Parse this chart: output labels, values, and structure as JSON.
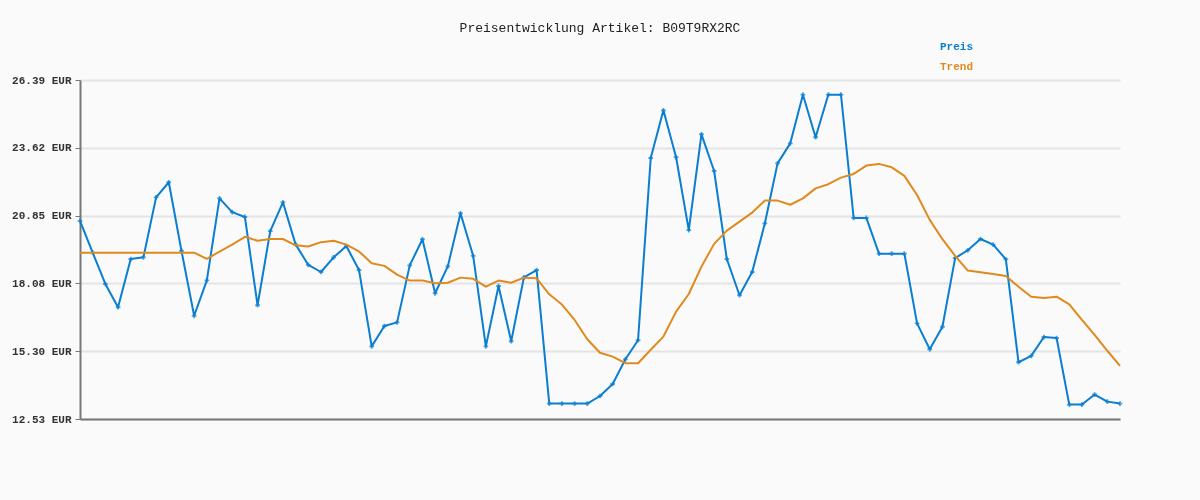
{
  "chart_data": {
    "type": "line",
    "title": "Preisentwicklung Artikel: B09T9RX2RC",
    "categories": [
      null,
      null,
      null,
      null,
      null,
      null,
      null,
      null,
      null,
      null,
      null,
      null,
      null,
      null,
      null,
      null,
      null,
      null,
      null,
      null,
      null,
      null,
      null,
      null,
      null,
      null,
      null,
      null,
      null,
      null,
      null,
      null,
      null,
      null,
      null,
      null,
      null,
      null,
      null,
      null,
      null,
      null,
      null,
      null,
      null,
      null,
      null,
      null,
      null,
      null,
      null,
      null,
      null,
      null,
      null,
      null,
      null,
      null,
      null,
      null,
      null,
      null,
      null,
      null,
      null,
      null,
      null,
      null,
      null,
      null,
      null,
      null,
      null,
      null,
      null,
      null,
      null,
      null,
      null,
      null,
      null,
      null,
      null
    ],
    "series": [
      {
        "name": "Preis",
        "color": "#0a7ed0",
        "marker": "cross",
        "values": [
          20.63,
          19.33,
          18.05,
          17.1,
          19.07,
          19.14,
          21.59,
          22.21,
          19.41,
          16.75,
          18.2,
          21.55,
          20.99,
          20.79,
          17.18,
          20.21,
          21.39,
          19.67,
          18.83,
          18.54,
          19.14,
          19.6,
          18.62,
          15.5,
          16.33,
          16.48,
          18.81,
          19.88,
          17.67,
          18.77,
          20.94,
          19.2,
          15.5,
          17.97,
          15.71,
          18.32,
          18.62,
          13.16,
          13.16,
          13.16,
          13.16,
          13.47,
          13.96,
          14.97,
          15.75,
          23.2,
          25.15,
          23.23,
          20.25,
          24.17,
          22.67,
          19.07,
          17.59,
          18.54,
          20.53,
          22.98,
          23.8,
          25.79,
          24.05,
          25.79,
          25.79,
          20.75,
          20.75,
          19.29,
          19.29,
          19.29,
          16.44,
          15.38,
          16.3,
          19.11,
          19.43,
          19.89,
          19.66,
          19.06,
          14.85,
          15.11,
          15.88,
          15.84,
          13.12,
          13.12,
          13.53,
          13.24,
          13.16
        ]
      },
      {
        "name": "Trend",
        "color": "#e08a1e",
        "marker": "none",
        "values": [
          19.33,
          19.33,
          19.33,
          19.33,
          19.33,
          19.33,
          19.33,
          19.33,
          19.33,
          19.33,
          19.08,
          19.37,
          19.66,
          19.98,
          19.82,
          19.89,
          19.89,
          19.63,
          19.58,
          19.76,
          19.82,
          19.66,
          19.38,
          18.9,
          18.79,
          18.43,
          18.19,
          18.19,
          18.08,
          18.1,
          18.31,
          18.26,
          17.94,
          18.19,
          18.1,
          18.31,
          18.28,
          17.63,
          17.21,
          16.58,
          15.79,
          15.24,
          15.08,
          14.81,
          14.81,
          15.36,
          15.9,
          16.92,
          17.64,
          18.76,
          19.69,
          20.23,
          20.6,
          20.97,
          21.46,
          21.46,
          21.29,
          21.55,
          21.96,
          22.13,
          22.4,
          22.55,
          22.89,
          22.96,
          22.82,
          22.47,
          21.69,
          20.67,
          19.88,
          19.2,
          18.6,
          18.53,
          18.46,
          18.38,
          17.94,
          17.53,
          17.48,
          17.53,
          17.22,
          16.58,
          15.97,
          15.32,
          14.7
        ]
      }
    ],
    "ylim": [
      12.53,
      26.39
    ],
    "yticks": [
      {
        "value": 12.53,
        "label": "12.53 EUR"
      },
      {
        "value": 15.3,
        "label": "15.30 EUR"
      },
      {
        "value": 18.08,
        "label": "18.08 EUR"
      },
      {
        "value": 20.85,
        "label": "20.85 EUR"
      },
      {
        "value": 23.62,
        "label": "23.62 EUR"
      },
      {
        "value": 26.39,
        "label": "26.39 EUR"
      }
    ],
    "grid": "y",
    "legend": "top right",
    "tick_labels": "y",
    "line_style": "solid"
  }
}
